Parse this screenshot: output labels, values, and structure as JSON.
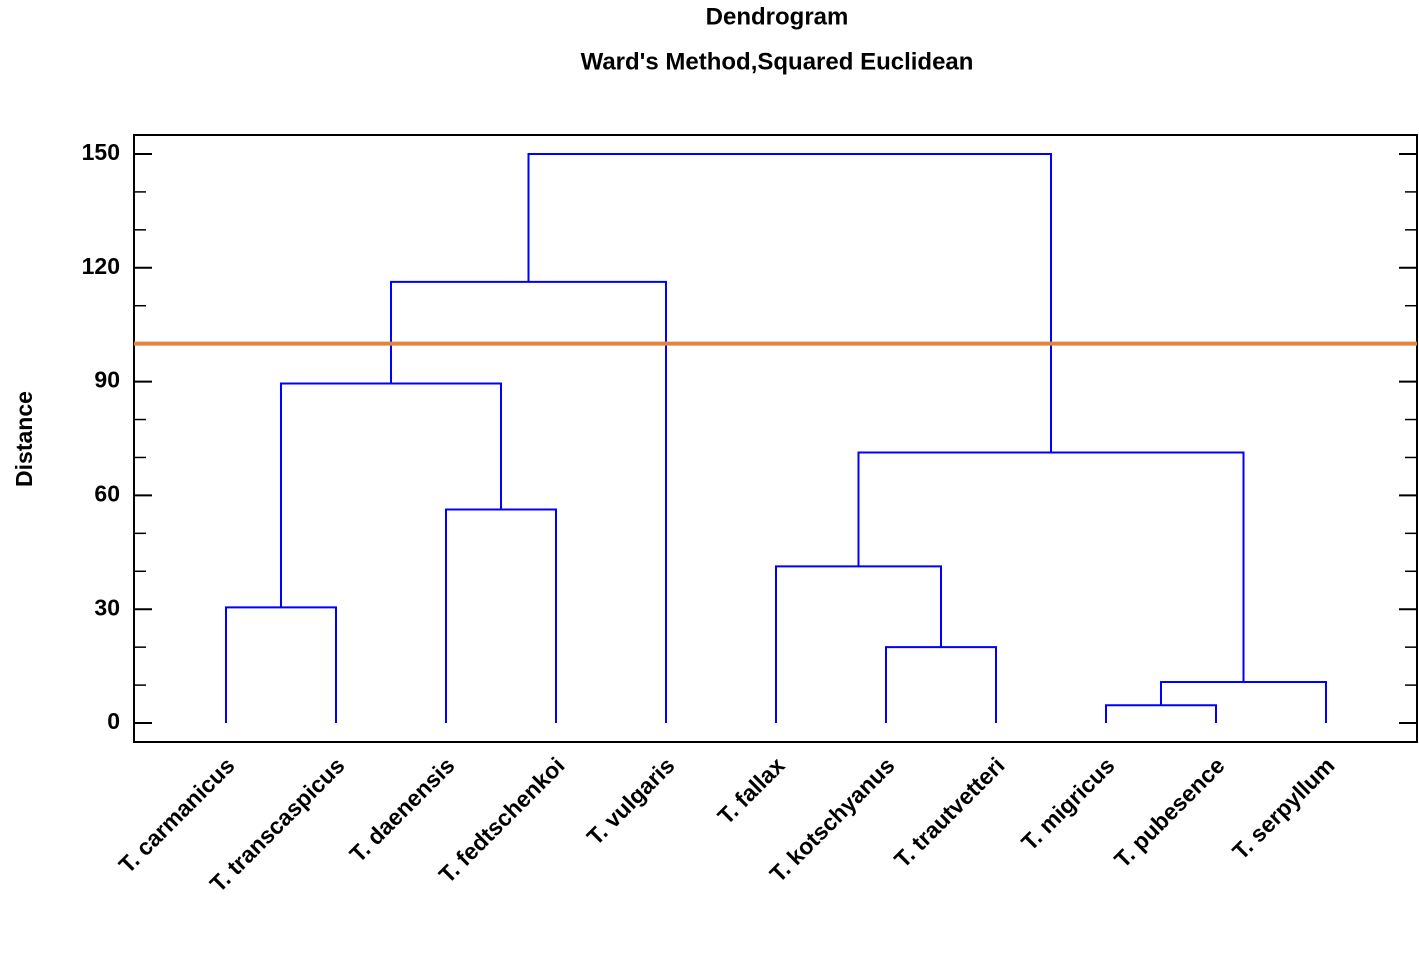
{
  "chart_data": {
    "type": "dendrogram",
    "title": "Dendrogram",
    "subtitle": "Ward's Method,Squared Euclidean",
    "ylabel": "Distance",
    "leaves": [
      "T. carmanicus",
      "T. transcaspicus",
      "T. daenensis",
      "T. fedtschenkoi",
      "T. vulgaris",
      "T. fallax",
      "T. kotschyanus",
      "T. trautvetteri",
      "T. migricus",
      "T. pubesence",
      "T. serpyllum"
    ],
    "merges": [
      {
        "left": 0,
        "right": 1,
        "height": 30.5
      },
      {
        "left": 2,
        "right": 3,
        "height": 56.3
      },
      {
        "left": 11,
        "right": 12,
        "height": 89.5
      },
      {
        "left": 13,
        "right": 4,
        "height": 116.3
      },
      {
        "left": 6,
        "right": 7,
        "height": 20
      },
      {
        "left": 5,
        "right": 15,
        "height": 41.3
      },
      {
        "left": 8,
        "right": 9,
        "height": 4.7
      },
      {
        "left": 17,
        "right": 10,
        "height": 10.8
      },
      {
        "left": 16,
        "right": 18,
        "height": 71.3
      },
      {
        "left": 14,
        "right": 19,
        "height": 150
      }
    ],
    "color": "#0000ff",
    "cut_height": 100,
    "cut_color": "#e8823a",
    "ylim": [
      -5,
      155
    ],
    "yticks": [
      0,
      30,
      60,
      90,
      120,
      150
    ],
    "minor_yticks": [
      10,
      20,
      40,
      50,
      70,
      80,
      100,
      110,
      130,
      140
    ]
  }
}
